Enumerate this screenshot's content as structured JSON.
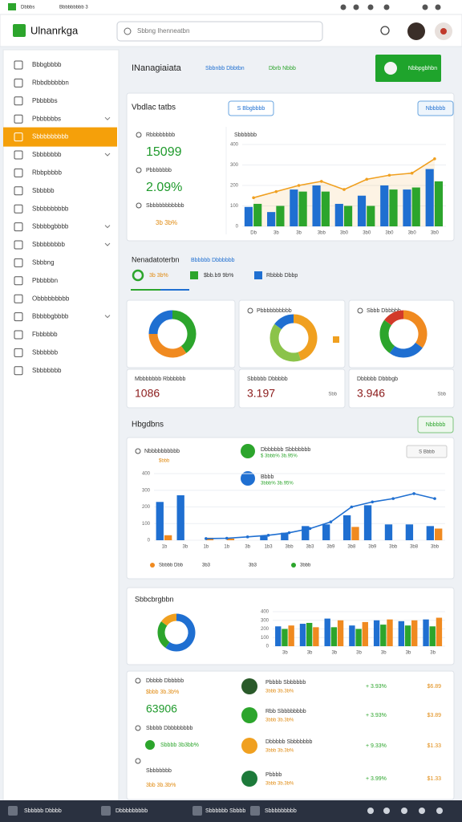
{
  "status_bar": {
    "left": "Dbbbs",
    "center": "Bbbbbbbbb 3"
  },
  "header": {
    "logo": "Ulnanrkga",
    "search": "Sbbng Ihenneatbn"
  },
  "sidebar": {
    "active": 4,
    "items": [
      "Bbbgbbbb",
      "Rbbdbbbbbn",
      "Pbbbbbs",
      "Pbbbbbbs",
      "Sbbbbbbbbb",
      "Sbbbbbbb",
      "Rbbpbbbb",
      "Sbbbbb",
      "Sbbbbbbbbb",
      "Sbbbbgbbbb",
      "Sbbbbbbbb",
      "Sbbbng",
      "Pbbbbbn",
      "Obbbbbbbbb",
      "Bbbbbgbbbb",
      "Fbbbbbb",
      "Sbbbbbb",
      "Sbbbbbbb"
    ]
  },
  "page": {
    "title": "INanagiaiata",
    "links": [
      "Sbbnbb Dbbtbn",
      "Dbrb Nbbb"
    ],
    "button": "Nbbpgbhbn"
  },
  "overview": {
    "title": "Vbdlac tatbs",
    "filter": "S Bbgbbbb",
    "action": "Nbbbbb",
    "kpis": [
      {
        "label": "Rbbbbbbbb",
        "value": "15099"
      },
      {
        "label": "Pbbbbbbb",
        "value": "2.09%"
      },
      {
        "label": "Sbbbbbbbbbbb",
        "value": "3b 3b%"
      }
    ],
    "chart": {
      "type": "bar",
      "title": "Sbbbbbb",
      "categories": [
        "Db",
        "3b",
        "3b",
        "3bb",
        "3b0",
        "3b0",
        "3b0",
        "3b0",
        "3b0"
      ],
      "ylim": [
        0,
        400
      ],
      "yticks": [
        0,
        100,
        200,
        300,
        400
      ],
      "grid": true,
      "series": [
        {
          "type": "bar",
          "color": "#1f6fd1",
          "values": [
            95,
            70,
            180,
            200,
            110,
            150,
            200,
            180,
            280
          ]
        },
        {
          "type": "bar",
          "color": "#2ca52c",
          "values": [
            110,
            100,
            170,
            170,
            100,
            100,
            180,
            190,
            220
          ]
        },
        {
          "type": "line",
          "color": "#f0a020",
          "area": true,
          "values": [
            140,
            170,
            200,
            220,
            180,
            230,
            250,
            260,
            330
          ]
        }
      ]
    }
  },
  "summary": {
    "title": "Nenadatoterbn",
    "subtitle": "Bbbbbb Dbbbbbb",
    "legend": [
      {
        "label": "3b 3b%",
        "color": "#2ca52c"
      },
      {
        "label": "$bb.b9 9b%",
        "color": "#2ca52c"
      },
      {
        "label": "Rbbbb Dbbp",
        "color": "#1f6fd1"
      }
    ]
  },
  "donuts": [
    {
      "type": "donut",
      "colors": [
        "#2ca52c",
        "#f08a20",
        "#1f6fd1"
      ],
      "values": [
        40,
        35,
        25
      ],
      "stat": {
        "label": "Mbbbbbbb Rbbbbbb",
        "value": "1086"
      }
    },
    {
      "type": "donut",
      "title": "Pbbbbbbbbbb",
      "colors": [
        "#f0a020",
        "#8bc34a",
        "#1f6fd1"
      ],
      "values": [
        45,
        40,
        15
      ],
      "stat": {
        "label": "Sbbbbb Dbbbbb",
        "value": "3.197",
        "unit": "Sbb"
      }
    },
    {
      "type": "donut",
      "title": "Sbbb Dbbbbb",
      "colors": [
        "#f08a20",
        "#1f6fd1",
        "#2ca52c",
        "#d23a2a"
      ],
      "values": [
        35,
        25,
        25,
        15
      ],
      "stat": {
        "label": "Dbbbbb Dbbbgb",
        "value": "3.946",
        "unit": "Sbb"
      }
    }
  ],
  "trends": {
    "title": "Hbgdbns",
    "action": "Nbbbbb",
    "label": "Nbbbbbbbbbb",
    "sublabel": "$bbb",
    "chip": "S Bbbb",
    "items": [
      {
        "title": "Dbbbbbb Sbbbbbbb",
        "sub": "$ 3bbb% 3b.95%",
        "color": "#2ca52c"
      },
      {
        "title": "Bbbb",
        "sub": "3bbb% 3b.95%",
        "color": "#1f6fd1"
      }
    ],
    "chart": {
      "type": "bar",
      "categories": [
        "1b",
        "3b",
        "1b",
        "1b",
        "3b",
        "1b3",
        "3bb",
        "3b3",
        "3b9",
        "3b8",
        "3b9",
        "3bb",
        "3b8",
        "3bb"
      ],
      "ylim": [
        0,
        400
      ],
      "yticks": [
        0,
        100,
        200,
        300,
        400
      ],
      "grid": true,
      "series": [
        {
          "type": "bar",
          "color": "#1f6fd1",
          "values": [
            230,
            270,
            0,
            0,
            0,
            25,
            45,
            85,
            95,
            150,
            210,
            95,
            95,
            85
          ]
        },
        {
          "type": "bar",
          "color": "#f08a20",
          "values": [
            30,
            0,
            15,
            10,
            0,
            0,
            0,
            0,
            0,
            80,
            0,
            0,
            0,
            70
          ]
        },
        {
          "type": "line",
          "color": "#1f6fd1",
          "values": [
            null,
            null,
            10,
            12,
            20,
            30,
            45,
            70,
            110,
            200,
            230,
            250,
            280,
            250
          ]
        }
      ]
    },
    "footer": [
      {
        "label": "Sbbbb Dbb",
        "color": "#f08a20"
      },
      {
        "label": "3b3"
      },
      {
        "label": "3b3"
      },
      {
        "label": "3bbb",
        "color": "#2ca52c"
      }
    ]
  },
  "segments": {
    "title": "Sbbcbrgbbn",
    "donut": {
      "type": "donut",
      "colors": [
        "#1f6fd1",
        "#2ca52c",
        "#f0a020"
      ],
      "values": [
        60,
        25,
        15
      ]
    },
    "chart": {
      "type": "bar",
      "categories": [
        "3b",
        "3b",
        "3b",
        "3b",
        "3b",
        "3b",
        "3b"
      ],
      "ylim": [
        0,
        400
      ],
      "yticks": [
        0,
        100,
        200,
        300,
        400
      ],
      "grid": true,
      "series": [
        {
          "type": "bar",
          "color": "#1f6fd1",
          "values": [
            230,
            260,
            320,
            240,
            300,
            290,
            310
          ]
        },
        {
          "type": "bar",
          "color": "#2ca52c",
          "values": [
            200,
            270,
            220,
            200,
            250,
            240,
            230
          ]
        },
        {
          "type": "bar",
          "color": "#f08a20",
          "values": [
            240,
            220,
            300,
            280,
            310,
            300,
            330
          ]
        }
      ]
    }
  },
  "details": {
    "title": "Dbbbb Dbbbbb",
    "sub": "$bbb 3b.3b%",
    "value": "63906",
    "items": [
      "Sbbbb Dbbbbbbbb",
      "Sbbbb 3b3bb%",
      "Sbbbbbbb",
      "3bb 3b.3b%"
    ],
    "rows": [
      {
        "name": "Pbbbb Sbbbbbb",
        "sub": "3bbb 3b.3b%",
        "change": "+ 3.93%",
        "value": "$6.89",
        "color": "#2a5a2a"
      },
      {
        "name": "Rbb Sbbbbbbbb",
        "sub": "3bbb 3b.3b%",
        "change": "+ 3.93%",
        "value": "$3.89",
        "color": "#2ca52c"
      },
      {
        "name": "Dbbbbb Sbbbbbbb",
        "sub": "3bbb 3b.3b%",
        "change": "+ 9.33%",
        "value": "$1.33",
        "color": "#f0a020"
      },
      {
        "name": "Pbbbb",
        "sub": "3bbb 3b.3b%",
        "change": "+ 3.99%",
        "value": "$1.33",
        "color": "#1d7a3a"
      }
    ]
  },
  "taskbar": [
    "Sbbbbb Dbbbb",
    "Dbbbbbbbbb",
    "Sbbbbbb Sbbbb",
    "Sbbbbbbbbb"
  ]
}
